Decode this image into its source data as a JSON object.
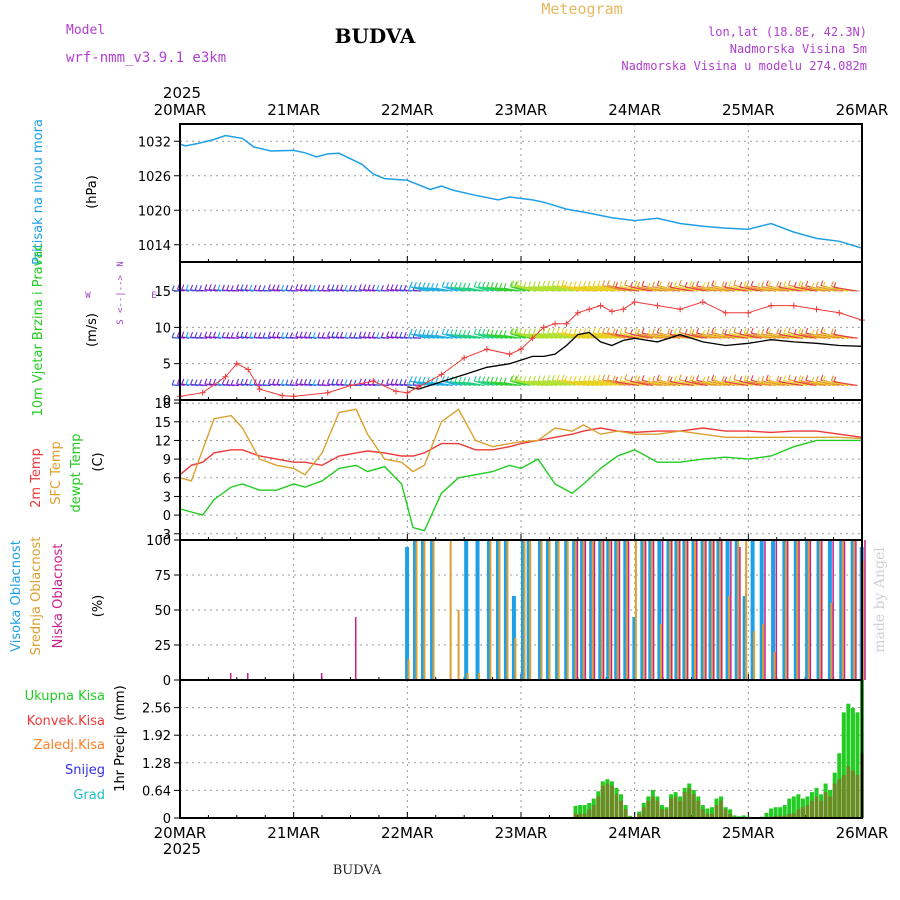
{
  "header": {
    "model_label": "Model",
    "model_name": "wrf-nmm_v3.9.1 e3km",
    "title": "BUDVA",
    "meteogram": "Meteogram",
    "lonlat": "lon,lat (18.8E, 42.3N)",
    "altitude": "Nadmorska Visina 5m",
    "model_altitude": "Nadmorska Visina u modelu 274.082m"
  },
  "colors": {
    "pressure": "#1ea0e6",
    "temp2m": "#ee3a3a",
    "sfc": "#dca030",
    "dewpt": "#22cc22",
    "wind_black": "#000000",
    "purple": "#a040c8",
    "cloud_high": "#1ea0e6",
    "cloud_mid": "#dca030",
    "cloud_low": "#c8208c",
    "total": "#22cc22",
    "convective": "#ee3a3a",
    "freezing": "#ff7f27",
    "snow": "#3030e0",
    "hail": "#20c0c0",
    "precip_bar": "#6b8c24"
  },
  "footer": {
    "location": "BUDVA",
    "credit": "made by Angel"
  },
  "time_axis": {
    "year_top": "2025",
    "year_bottom": "2025",
    "labels": [
      "20MAR",
      "21MAR",
      "22MAR",
      "23MAR",
      "24MAR",
      "25MAR",
      "26MAR"
    ]
  },
  "chart_data": [
    {
      "type": "line",
      "panel": "pressure",
      "ylabel": "Pritisak na nivou mora",
      "unit": "(hPa)",
      "ylim": [
        1011,
        1035
      ],
      "yticks": [
        1014,
        1020,
        1026,
        1032
      ],
      "x_days": [
        0.0,
        0.05,
        0.15,
        0.3,
        0.4,
        0.55,
        0.65,
        0.8,
        1.0,
        1.1,
        1.2,
        1.3,
        1.4,
        1.6,
        1.7,
        1.8,
        2.0,
        2.2,
        2.3,
        2.4,
        2.6,
        2.8,
        2.9,
        3.1,
        3.2,
        3.4,
        3.6,
        3.8,
        4.0,
        4.2,
        4.4,
        4.6,
        4.8,
        5.0,
        5.2,
        5.4,
        5.6,
        5.8,
        6.0
      ],
      "series": [
        {
          "name": "Pritisak na nivou mora",
          "values": [
            1031.5,
            1031.2,
            1031.6,
            1032.3,
            1033.0,
            1032.5,
            1031.0,
            1030.3,
            1030.4,
            1030.0,
            1029.3,
            1029.8,
            1029.9,
            1028.0,
            1026.3,
            1025.5,
            1025.2,
            1023.6,
            1024.2,
            1023.5,
            1022.6,
            1021.8,
            1022.3,
            1021.8,
            1021.4,
            1020.2,
            1019.5,
            1018.7,
            1018.2,
            1018.6,
            1017.7,
            1017.2,
            1016.9,
            1016.7,
            1017.7,
            1016.2,
            1015.1,
            1014.6,
            1013.4
          ]
        }
      ]
    },
    {
      "type": "line",
      "panel": "wind",
      "ylabel": "10m Vjetar Brzina i Pravac",
      "unit": "(m/s)",
      "compass": {
        "north": "N",
        "south": "S",
        "east": "E",
        "west": "W",
        "arrows": "<--|-->"
      },
      "ylim": [
        0,
        19
      ],
      "yticks": [
        0,
        5,
        10,
        15
      ],
      "x_days": [
        0.0,
        0.2,
        0.4,
        0.5,
        0.6,
        0.7,
        0.9,
        1.0,
        1.3,
        1.5,
        1.7,
        1.9,
        2.0,
        2.1,
        2.3,
        2.5,
        2.7,
        2.9,
        3.0,
        3.1,
        3.2,
        3.3,
        3.4,
        3.5,
        3.6,
        3.7,
        3.8,
        3.9,
        4.0,
        4.2,
        4.4,
        4.6,
        4.8,
        5.0,
        5.2,
        5.4,
        5.6,
        5.8,
        6.0
      ],
      "series": [
        {
          "name": "Brzina (markers)",
          "values": [
            0.5,
            1.0,
            3.2,
            5.0,
            4.2,
            1.5,
            0.6,
            0.5,
            1.0,
            2.0,
            2.6,
            1.2,
            1.0,
            1.8,
            3.5,
            5.8,
            7.0,
            6.3,
            7.0,
            8.5,
            10.0,
            10.5,
            10.5,
            12.0,
            12.5,
            13.0,
            12.2,
            12.5,
            13.5,
            13.0,
            12.5,
            13.5,
            12.0,
            12.0,
            13.0,
            13.0,
            12.5,
            12.0,
            11.0
          ]
        },
        {
          "name": "Brzina (line)",
          "values": [
            null,
            null,
            null,
            null,
            null,
            null,
            null,
            null,
            null,
            null,
            null,
            null,
            1.8,
            1.5,
            2.5,
            3.5,
            4.5,
            5.0,
            5.5,
            6.0,
            6.0,
            6.3,
            7.5,
            9.0,
            9.3,
            8.0,
            7.5,
            8.2,
            8.5,
            8.0,
            9.0,
            8.0,
            7.5,
            7.8,
            8.3,
            8.0,
            7.8,
            7.5,
            7.4
          ]
        }
      ],
      "barb_rows_ms": [
        15,
        8.5,
        2
      ],
      "barb_colors": [
        "#7a20d0",
        "#3050e0",
        "#20b0e0",
        "#20d080",
        "#30d030",
        "#b0e030",
        "#e8d020",
        "#e89030",
        "#e84040"
      ]
    },
    {
      "type": "line",
      "panel": "temperature",
      "ylabels": [
        "2m Temp",
        "SFC Temp",
        "dewpt Temp"
      ],
      "unit": "(C)",
      "ylim": [
        -4,
        18.5
      ],
      "yticks": [
        -3,
        0,
        3,
        6,
        9,
        12,
        15,
        18
      ],
      "x_days": [
        0.0,
        0.1,
        0.2,
        0.3,
        0.45,
        0.55,
        0.7,
        0.85,
        1.0,
        1.1,
        1.25,
        1.4,
        1.55,
        1.65,
        1.8,
        1.95,
        2.05,
        2.15,
        2.3,
        2.45,
        2.6,
        2.75,
        2.9,
        3.0,
        3.15,
        3.3,
        3.45,
        3.55,
        3.7,
        3.85,
        4.0,
        4.2,
        4.4,
        4.6,
        4.8,
        5.0,
        5.2,
        5.4,
        5.6,
        5.8,
        6.0
      ],
      "series": [
        {
          "name": "2m Temp",
          "values": [
            6.5,
            8.0,
            8.5,
            10.0,
            10.5,
            10.5,
            9.5,
            9.0,
            8.5,
            8.5,
            8.0,
            9.5,
            10.0,
            10.3,
            10.0,
            9.5,
            9.5,
            10.0,
            11.5,
            11.5,
            10.5,
            10.5,
            11.0,
            11.5,
            12.0,
            12.5,
            13.0,
            13.5,
            14.0,
            13.5,
            13.3,
            13.5,
            13.5,
            14.0,
            13.5,
            13.5,
            13.3,
            13.5,
            13.5,
            13.0,
            12.5
          ]
        },
        {
          "name": "SFC Temp",
          "values": [
            6.0,
            5.5,
            10.5,
            15.5,
            16.0,
            14.0,
            9.0,
            8.0,
            7.5,
            6.5,
            10.0,
            16.5,
            17.0,
            13.0,
            9.0,
            8.5,
            7.0,
            8.0,
            15.0,
            17.0,
            12.0,
            11.0,
            11.5,
            11.8,
            12.0,
            14.0,
            13.5,
            14.5,
            13.0,
            13.5,
            13.0,
            13.0,
            13.5,
            13.0,
            12.5,
            12.5,
            12.5,
            12.5,
            12.5,
            12.5,
            12.3
          ]
        },
        {
          "name": "dewpt Temp",
          "values": [
            1.0,
            0.5,
            0.0,
            2.5,
            4.5,
            5.0,
            4.0,
            4.0,
            5.0,
            4.5,
            5.5,
            7.5,
            8.0,
            7.0,
            7.8,
            5.0,
            -2.0,
            -2.5,
            3.5,
            6.0,
            6.5,
            7.0,
            8.0,
            7.5,
            9.0,
            5.0,
            3.5,
            5.0,
            7.5,
            9.5,
            10.5,
            8.5,
            8.5,
            9.0,
            9.3,
            9.0,
            9.5,
            11.0,
            12.0,
            12.0,
            12.0
          ]
        }
      ]
    },
    {
      "type": "bar",
      "panel": "clouds",
      "ylabels": [
        "Visoka Oblacnost",
        "Srednja Oblacnost",
        "Niska Oblacnost"
      ],
      "unit": "(%)",
      "ylim": [
        0,
        100
      ],
      "yticks": [
        0,
        25,
        50,
        75,
        100
      ],
      "x_days": [
        0.4,
        0.55,
        1.2,
        1.5,
        1.98,
        2.05,
        2.12,
        2.2,
        2.35,
        2.42,
        2.5,
        2.6,
        2.7,
        2.78,
        2.85,
        2.92,
        3.0,
        3.05,
        3.15,
        3.22,
        3.3,
        3.38,
        3.45,
        3.52,
        3.6,
        3.68,
        3.75,
        3.82,
        3.9,
        3.98,
        4.05,
        4.12,
        4.2,
        4.28,
        4.35,
        4.42,
        4.5,
        4.58,
        4.65,
        4.72,
        4.8,
        4.88,
        4.95,
        5.02,
        5.1,
        5.2,
        5.3,
        5.4,
        5.5,
        5.6,
        5.7,
        5.8,
        5.9,
        5.98
      ],
      "series": [
        {
          "name": "Visoka Oblacnost",
          "values": [
            0,
            0,
            0,
            0,
            95,
            100,
            100,
            100,
            0,
            0,
            100,
            100,
            100,
            100,
            100,
            60,
            100,
            100,
            100,
            100,
            100,
            100,
            100,
            100,
            100,
            100,
            100,
            100,
            100,
            45,
            100,
            100,
            100,
            100,
            100,
            100,
            100,
            100,
            100,
            100,
            100,
            100,
            60,
            100,
            100,
            100,
            100,
            100,
            100,
            100,
            100,
            100,
            100,
            95
          ]
        },
        {
          "name": "Srednja Oblacnost",
          "values": [
            0,
            0,
            0,
            0,
            15,
            100,
            100,
            100,
            100,
            50,
            5,
            5,
            100,
            100,
            100,
            30,
            100,
            100,
            100,
            100,
            100,
            100,
            100,
            100,
            100,
            100,
            100,
            100,
            100,
            100,
            100,
            100,
            40,
            100,
            100,
            100,
            100,
            100,
            100,
            100,
            60,
            100,
            100,
            35,
            40,
            20,
            100,
            100,
            100,
            100,
            55,
            100,
            100,
            85
          ]
        },
        {
          "name": "Niska Oblacnost",
          "values": [
            5,
            5,
            5,
            45,
            0,
            0,
            0,
            0,
            0,
            0,
            0,
            0,
            0,
            0,
            0,
            0,
            0,
            0,
            0,
            0,
            0,
            0,
            100,
            100,
            100,
            100,
            100,
            100,
            100,
            0,
            100,
            100,
            100,
            100,
            100,
            100,
            100,
            100,
            100,
            100,
            100,
            95,
            0,
            0,
            100,
            100,
            100,
            100,
            100,
            100,
            100,
            100,
            100,
            100
          ]
        }
      ]
    },
    {
      "type": "bar",
      "panel": "precipitation",
      "legend": [
        "Ukupna Kisa",
        "Konvek.Kisa",
        "Zaledj.Kisa",
        "Snijeg",
        "Grad"
      ],
      "ylabel": "1hr Precip",
      "unit": "(mm)",
      "ylim": [
        0,
        3.2
      ],
      "yticks": [
        0,
        0.64,
        1.28,
        1.92,
        2.56
      ],
      "x_days": [
        3.48,
        3.52,
        3.56,
        3.6,
        3.64,
        3.68,
        3.72,
        3.76,
        3.8,
        3.84,
        3.88,
        3.92,
        3.96,
        4.04,
        4.08,
        4.12,
        4.16,
        4.2,
        4.24,
        4.28,
        4.32,
        4.36,
        4.4,
        4.44,
        4.48,
        4.52,
        4.56,
        4.6,
        4.64,
        4.68,
        4.72,
        4.76,
        4.8,
        4.84,
        4.88,
        4.92,
        4.96,
        5.0,
        5.04,
        5.08,
        5.12,
        5.16,
        5.2,
        5.24,
        5.28,
        5.32,
        5.36,
        5.4,
        5.44,
        5.48,
        5.52,
        5.56,
        5.6,
        5.64,
        5.68,
        5.72,
        5.76,
        5.8,
        5.84,
        5.88,
        5.92,
        5.96,
        6.0
      ],
      "series": [
        {
          "name": "Ukupna Kisa",
          "values": [
            0.28,
            0.3,
            0.3,
            0.35,
            0.45,
            0.62,
            0.85,
            0.9,
            0.85,
            0.7,
            0.55,
            0.3,
            0.05,
            0.15,
            0.35,
            0.5,
            0.65,
            0.5,
            0.3,
            0.25,
            0.55,
            0.6,
            0.5,
            0.7,
            0.8,
            0.65,
            0.5,
            0.3,
            0.22,
            0.25,
            0.45,
            0.5,
            0.25,
            0.2,
            0.06,
            0.04,
            0.06,
            0.03,
            0.01,
            0.01,
            0.03,
            0.12,
            0.22,
            0.25,
            0.25,
            0.3,
            0.45,
            0.5,
            0.55,
            0.45,
            0.5,
            0.6,
            0.7,
            0.55,
            0.8,
            0.65,
            1.05,
            1.5,
            2.45,
            2.65,
            2.55,
            2.45,
            3.2
          ]
        },
        {
          "name": "Konvek.Kisa",
          "values": [
            0.1,
            0.1,
            0.1,
            0.2,
            0.3,
            0.5,
            0.75,
            0.8,
            0.75,
            0.55,
            0.4,
            0.2,
            0.02,
            0.1,
            0.25,
            0.4,
            0.5,
            0.4,
            0.2,
            0.2,
            0.45,
            0.5,
            0.4,
            0.6,
            0.7,
            0.55,
            0.4,
            0.2,
            0.1,
            0.1,
            0.3,
            0.4,
            0.2,
            0.1,
            0.02,
            0.02,
            0.02,
            0.02,
            0.0,
            0.0,
            0.0,
            0.02,
            0.02,
            0.05,
            0.05,
            0.05,
            0.1,
            0.1,
            0.2,
            0.25,
            0.3,
            0.4,
            0.5,
            0.4,
            0.6,
            0.5,
            0.8,
            0.9,
            1.0,
            1.2,
            1.1,
            1.0,
            1.5
          ]
        },
        {
          "name": "Zaledj.Kisa",
          "values": []
        },
        {
          "name": "Snijeg",
          "values": []
        },
        {
          "name": "Grad",
          "values": []
        }
      ]
    }
  ]
}
